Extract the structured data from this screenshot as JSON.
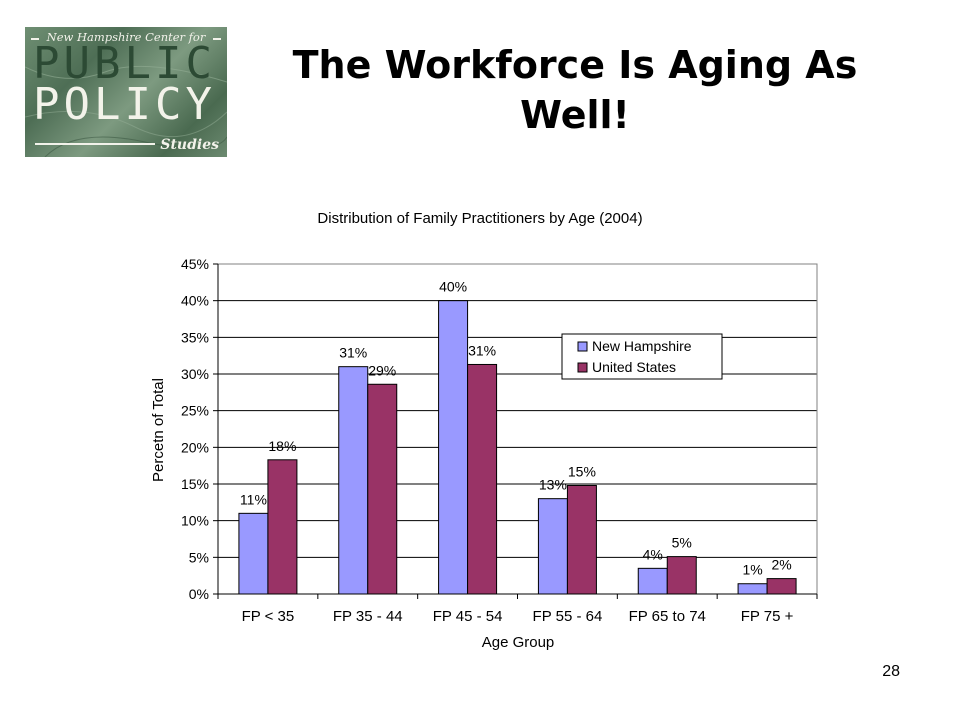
{
  "logo": {
    "line1": "New Hampshire Center for",
    "line2": "PUBLIC",
    "line3": "POLICY",
    "line4": "Studies"
  },
  "slide": {
    "title": "The Workforce Is Aging As Well!",
    "page_number": "28"
  },
  "colors": {
    "new_hampshire": "#9999ff",
    "united_states": "#993366",
    "logo_green": "#5c7d62"
  },
  "chart_data": {
    "type": "bar",
    "title": "Distribution of Family Practitioners by Age (2004)",
    "xlabel": "Age Group",
    "ylabel": "Percetn of Total",
    "categories": [
      "FP < 35",
      "FP 35 - 44",
      "FP 45 - 54",
      "FP 55 - 64",
      "FP 65 to 74",
      "FP 75 +"
    ],
    "series": [
      {
        "name": "New Hampshire",
        "values": [
          11,
          31,
          40,
          13,
          3.5,
          1.4
        ],
        "labels": [
          "11%",
          "31%",
          "40%",
          "13%",
          "4%",
          "1%"
        ]
      },
      {
        "name": "United States",
        "values": [
          18.3,
          28.6,
          31.3,
          14.8,
          5.1,
          2.1
        ],
        "labels": [
          "18%",
          "29%",
          "31%",
          "15%",
          "5%",
          "2%"
        ]
      }
    ],
    "ylim": [
      0,
      45
    ],
    "yticks": [
      0,
      5,
      10,
      15,
      20,
      25,
      30,
      35,
      40,
      45
    ],
    "ytick_labels": [
      "0%",
      "5%",
      "10%",
      "15%",
      "20%",
      "25%",
      "30%",
      "35%",
      "40%",
      "45%"
    ],
    "grid": true,
    "legend_position": "upper-right"
  }
}
